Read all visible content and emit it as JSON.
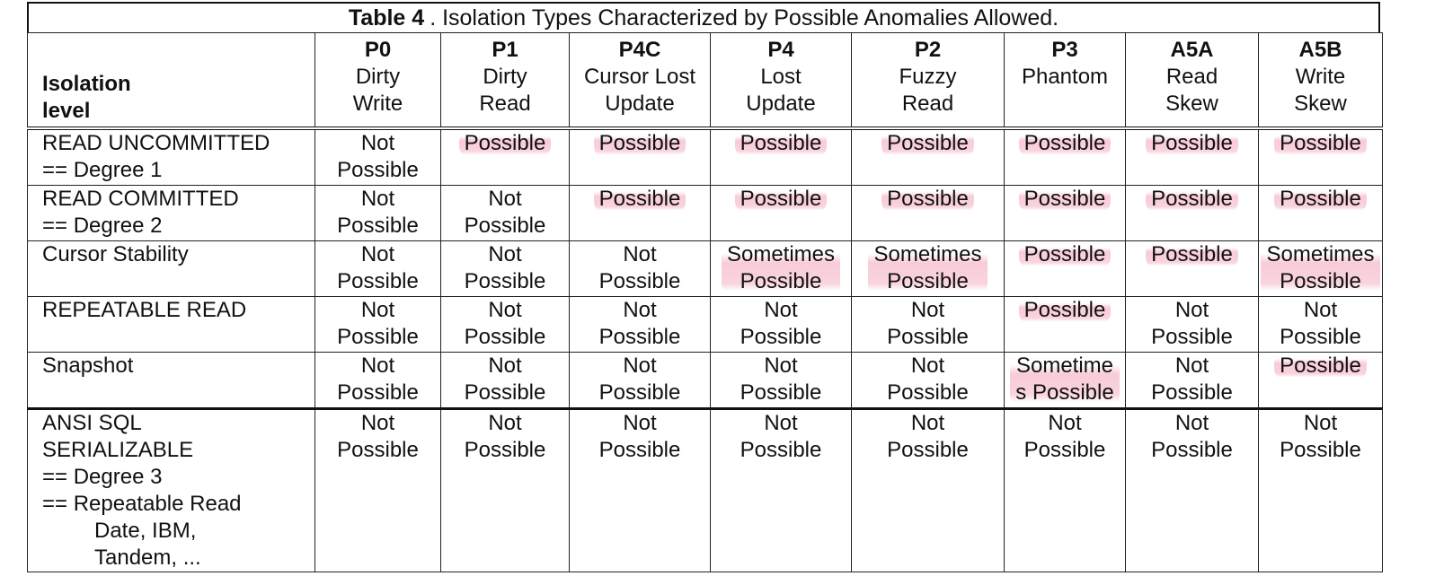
{
  "caption": {
    "label": "Table 4",
    "text": ".  Isolation Types Characterized by Possible Anomalies Allowed."
  },
  "header": {
    "isolation_label_line1": "Isolation",
    "isolation_label_line2": "level",
    "columns": [
      {
        "code": "P0",
        "name1": "Dirty",
        "name2": "Write"
      },
      {
        "code": "P1",
        "name1": "Dirty",
        "name2": "Read"
      },
      {
        "code": "P4C",
        "name1": "Cursor Lost",
        "name2": "Update"
      },
      {
        "code": "P4",
        "name1": "Lost",
        "name2": "Update"
      },
      {
        "code": "P2",
        "name1": "Fuzzy",
        "name2": "Read"
      },
      {
        "code": "P3",
        "name1": "Phantom",
        "name2": ""
      },
      {
        "code": "A5A",
        "name1": "Read",
        "name2": "Skew"
      },
      {
        "code": "A5B",
        "name1": "Write",
        "name2": "Skew"
      }
    ]
  },
  "rows": [
    {
      "label_lines": [
        "READ UNCOMMITTED",
        "== Degree 1"
      ],
      "cells": [
        {
          "l1": "Not",
          "l2": "Possible",
          "hl": false
        },
        {
          "l1": "Possible",
          "l2": "",
          "hl": true
        },
        {
          "l1": "Possible",
          "l2": "",
          "hl": true
        },
        {
          "l1": "Possible",
          "l2": "",
          "hl": true
        },
        {
          "l1": "Possible",
          "l2": "",
          "hl": true
        },
        {
          "l1": "Possible",
          "l2": "",
          "hl": true
        },
        {
          "l1": "Possible",
          "l2": "",
          "hl": true
        },
        {
          "l1": "Possible",
          "l2": "",
          "hl": true
        }
      ]
    },
    {
      "label_lines": [
        "READ COMMITTED",
        "== Degree 2"
      ],
      "cells": [
        {
          "l1": "Not",
          "l2": "Possible",
          "hl": false
        },
        {
          "l1": "Not",
          "l2": "Possible",
          "hl": false
        },
        {
          "l1": "Possible",
          "l2": "",
          "hl": true
        },
        {
          "l1": "Possible",
          "l2": "",
          "hl": true
        },
        {
          "l1": "Possible",
          "l2": "",
          "hl": true
        },
        {
          "l1": "Possible",
          "l2": "",
          "hl": true
        },
        {
          "l1": "Possible",
          "l2": "",
          "hl": true
        },
        {
          "l1": "Possible",
          "l2": "",
          "hl": true
        }
      ]
    },
    {
      "label_lines": [
        "Cursor Stability"
      ],
      "cells": [
        {
          "l1": "Not",
          "l2": "Possible",
          "hl": false
        },
        {
          "l1": "Not",
          "l2": "Possible",
          "hl": false
        },
        {
          "l1": "Not",
          "l2": "Possible",
          "hl": false
        },
        {
          "l1": "Sometimes",
          "l2": "Possible",
          "hl": true
        },
        {
          "l1": "Sometimes",
          "l2": "Possible",
          "hl": true
        },
        {
          "l1": "Possible",
          "l2": "",
          "hl": true
        },
        {
          "l1": "Possible",
          "l2": "",
          "hl": true
        },
        {
          "l1": "Sometimes",
          "l2": "Possible",
          "hl": true
        }
      ]
    },
    {
      "label_lines": [
        "REPEATABLE READ"
      ],
      "cells": [
        {
          "l1": "Not",
          "l2": "Possible",
          "hl": false
        },
        {
          "l1": "Not",
          "l2": "Possible",
          "hl": false
        },
        {
          "l1": "Not",
          "l2": "Possible",
          "hl": false
        },
        {
          "l1": "Not",
          "l2": "Possible",
          "hl": false
        },
        {
          "l1": "Not",
          "l2": "Possible",
          "hl": false
        },
        {
          "l1": "Possible",
          "l2": "",
          "hl": true
        },
        {
          "l1": "Not",
          "l2": "Possible",
          "hl": false
        },
        {
          "l1": "Not",
          "l2": "Possible",
          "hl": false
        }
      ]
    },
    {
      "label_lines": [
        "Snapshot"
      ],
      "cells": [
        {
          "l1": "Not",
          "l2": "Possible",
          "hl": false
        },
        {
          "l1": "Not",
          "l2": "Possible",
          "hl": false
        },
        {
          "l1": "Not",
          "l2": "Possible",
          "hl": false
        },
        {
          "l1": "Not",
          "l2": "Possible",
          "hl": false
        },
        {
          "l1": "Not",
          "l2": "Possible",
          "hl": false
        },
        {
          "l1": "Sometime",
          "l2": "s Possible",
          "hl": true
        },
        {
          "l1": "Not",
          "l2": "Possible",
          "hl": false
        },
        {
          "l1": "Possible",
          "l2": "",
          "hl": true
        }
      ]
    },
    {
      "label_lines": [
        "ANSI SQL",
        "SERIALIZABLE",
        "== Degree 3",
        "== Repeatable Read"
      ],
      "label_sub_lines": [
        "Date,  IBM,",
        "Tandem, ..."
      ],
      "cells": [
        {
          "l1": "Not",
          "l2": "Possible",
          "hl": false
        },
        {
          "l1": "Not",
          "l2": "Possible",
          "hl": false
        },
        {
          "l1": "Not",
          "l2": "Possible",
          "hl": false
        },
        {
          "l1": "Not",
          "l2": "Possible",
          "hl": false
        },
        {
          "l1": "Not",
          "l2": "Possible",
          "hl": false
        },
        {
          "l1": "Not",
          "l2": "Possible",
          "hl": false
        },
        {
          "l1": "Not",
          "l2": "Possible",
          "hl": false
        },
        {
          "l1": "Not",
          "l2": "Possible",
          "hl": false
        }
      ]
    }
  ],
  "colors": {
    "highlight": "#ec7896",
    "border": "#222222",
    "text": "#111111"
  }
}
